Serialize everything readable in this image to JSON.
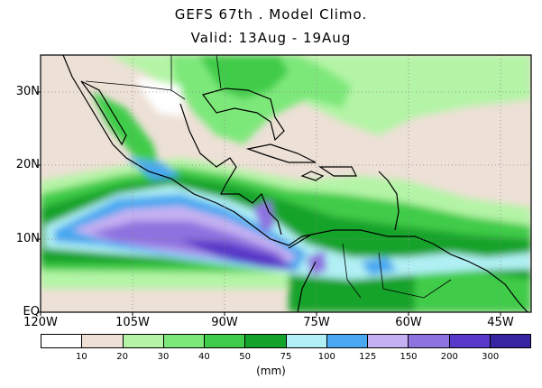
{
  "title_line1": "GEFS 67th . Model Climo.",
  "title_line2": "Valid: 13Aug - 19Aug",
  "lat_labels": [
    "30N",
    "20N",
    "10N",
    "EQ"
  ],
  "lon_labels": [
    "120W",
    "105W",
    "90W",
    "75W",
    "60W",
    "45W"
  ],
  "colorbar": {
    "colors": [
      "#ffffff",
      "#ede0d6",
      "#b4f4a6",
      "#7de87a",
      "#3fcc4a",
      "#14a32a",
      "#b0f0f4",
      "#4aa8f0",
      "#c4b0f2",
      "#8e72e0",
      "#5838c8",
      "#3624a0"
    ],
    "tick_labels": [
      "10",
      "20",
      "30",
      "40",
      "50",
      "75",
      "100",
      "125",
      "150",
      "200",
      "300"
    ],
    "units": "(mm)"
  }
}
